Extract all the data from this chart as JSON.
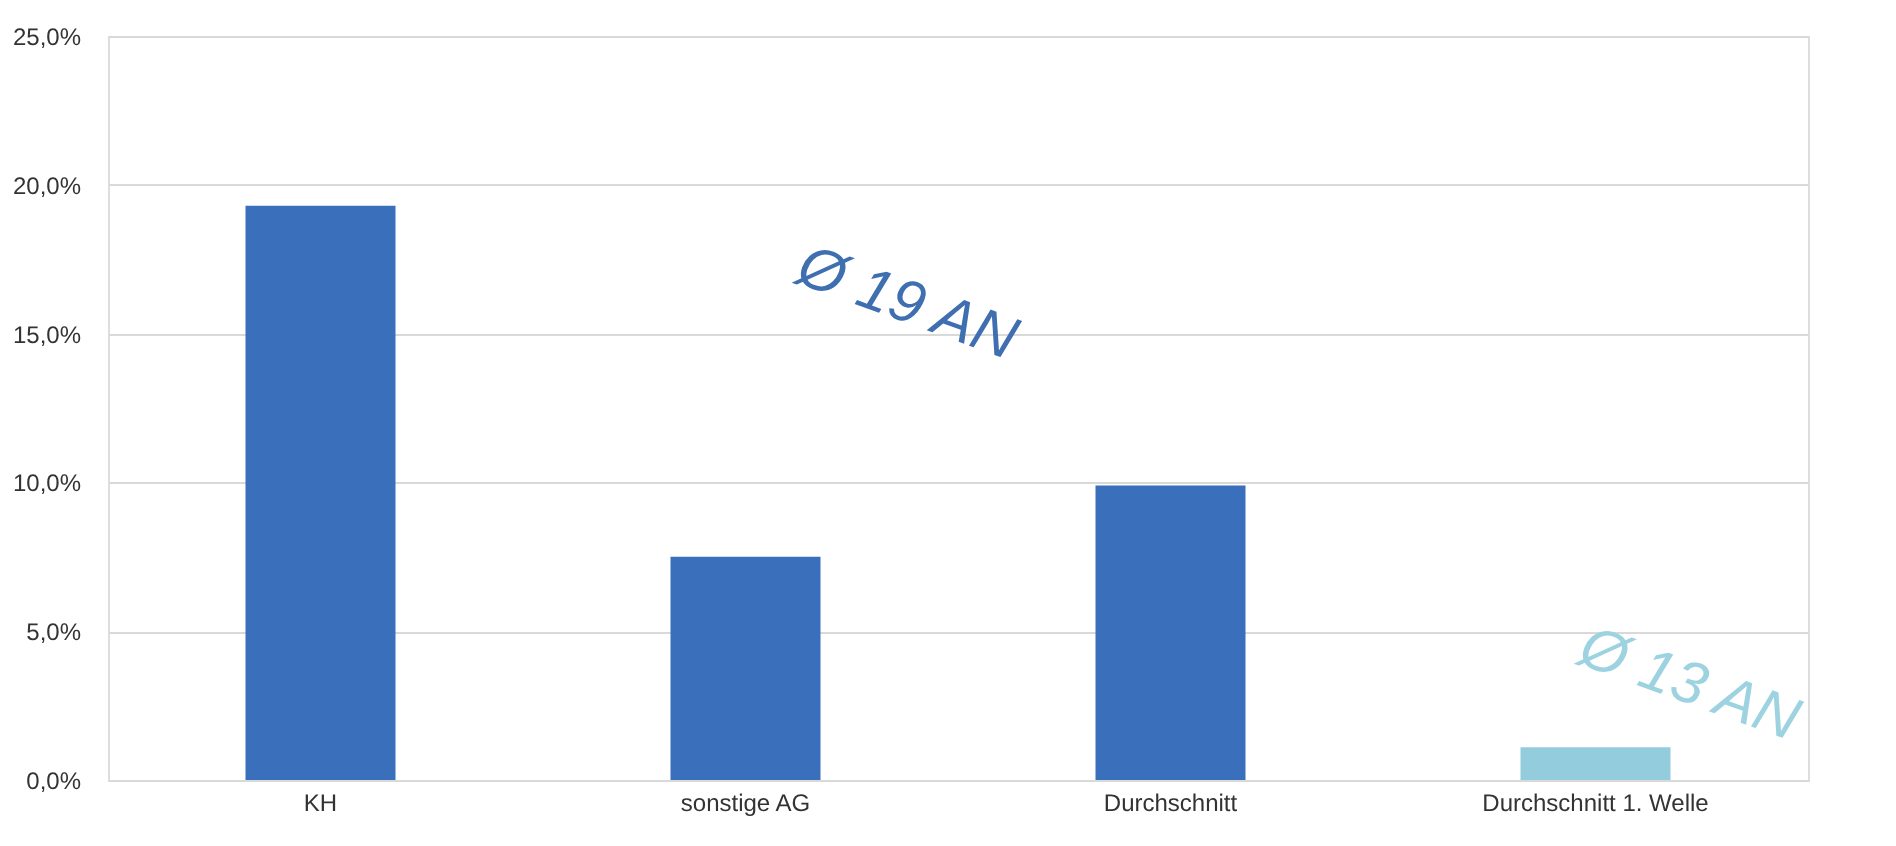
{
  "chart_data": {
    "type": "bar",
    "categories": [
      "KH",
      "sonstige AG",
      "Durchschnitt",
      "Durchschnitt 1. Welle"
    ],
    "values": [
      19.3,
      7.5,
      9.9,
      1.1
    ],
    "colors": [
      "#3a70bb",
      "#3a70bb",
      "#3a70bb",
      "#93cddd"
    ],
    "ylim": [
      0,
      25
    ],
    "yticks": [
      {
        "value": 0,
        "label": "0,0%"
      },
      {
        "value": 5,
        "label": "5,0%"
      },
      {
        "value": 10,
        "label": "10,0%"
      },
      {
        "value": 15,
        "label": "15,0%"
      },
      {
        "value": 20,
        "label": "20,0%"
      },
      {
        "value": 25,
        "label": "25,0%"
      }
    ],
    "grid": "y",
    "annotations": [
      "Ø 19 AN",
      "Ø 13 AN"
    ]
  }
}
